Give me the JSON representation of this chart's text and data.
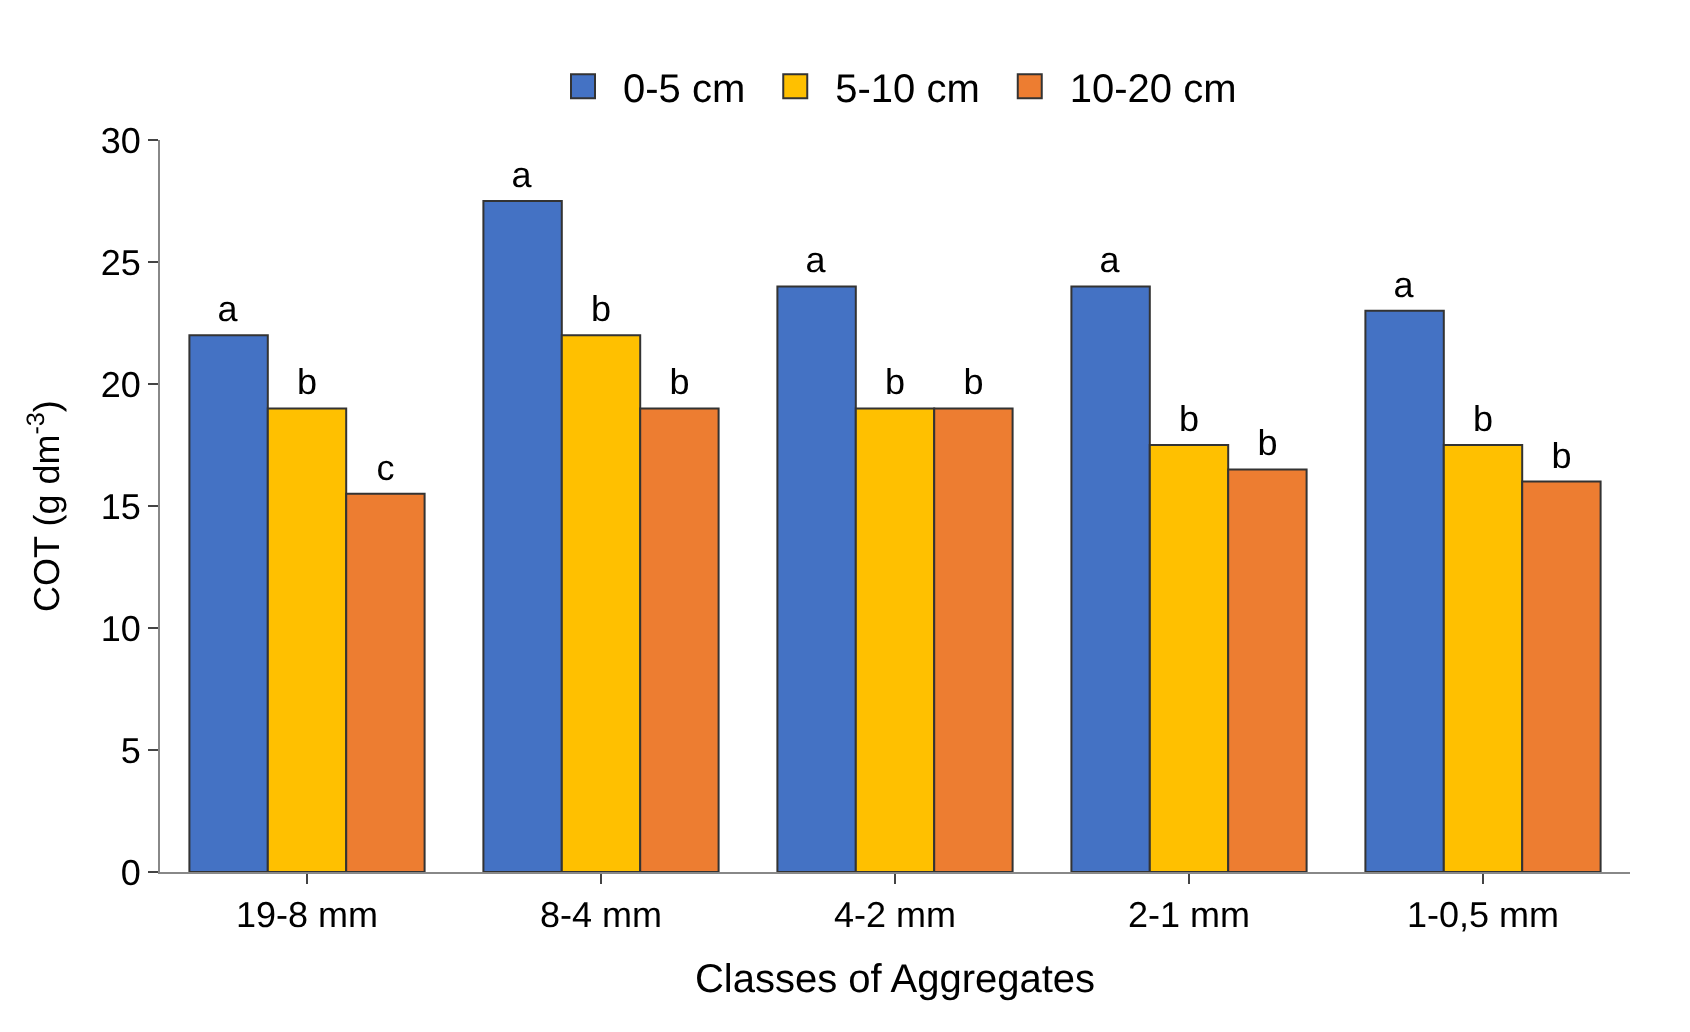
{
  "chart_data": {
    "type": "bar",
    "xlabel": "Classes of Aggregates",
    "ylabel": "COT (g dm$^{-3}$)",
    "categories": [
      "19-8 mm",
      "8-4 mm",
      "4-2 mm",
      "2-1 mm",
      "1-0,5 mm"
    ],
    "series": [
      {
        "name": "0-5 cm",
        "color": "#4472c4",
        "values": [
          22.0,
          27.5,
          24.0,
          24.0,
          23.0
        ],
        "value_labels": [
          "a",
          "a",
          "a",
          "a",
          "a"
        ]
      },
      {
        "name": "5-10 cm",
        "color": "#ffc000",
        "values": [
          19.0,
          22.0,
          19.0,
          17.5,
          17.5
        ],
        "value_labels": [
          "b",
          "b",
          "b",
          "b",
          "b"
        ]
      },
      {
        "name": "10-20 cm",
        "color": "#ed7d31",
        "values": [
          15.5,
          19.0,
          19.0,
          16.5,
          16.0
        ],
        "value_labels": [
          "c",
          "b",
          "b",
          "b",
          "b"
        ]
      }
    ],
    "ylim": [
      0,
      30
    ],
    "yticks": [
      0,
      5,
      10,
      15,
      20,
      25,
      30
    ],
    "legend": "top"
  }
}
